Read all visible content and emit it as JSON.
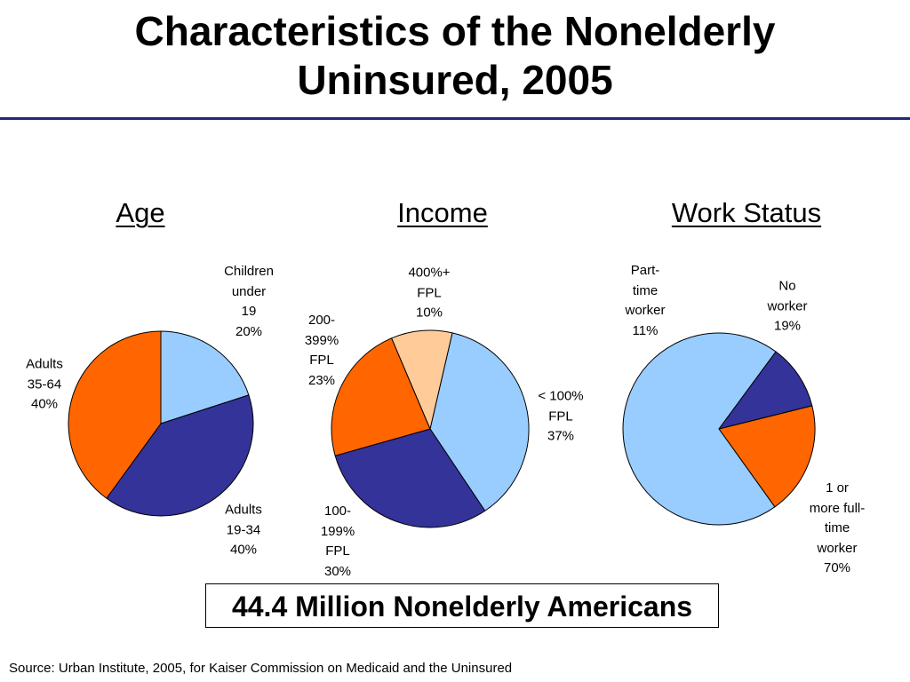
{
  "title_lines": [
    "Characteristics of the Nonelderly",
    "Uninsured, 2005"
  ],
  "total_note": "44.4 Million Nonelderly Americans",
  "source": "Source: Urban Institute, 2005, for Kaiser Commission on Medicaid and the Uninsured",
  "chart_data": [
    {
      "type": "pie",
      "title": "Age",
      "slices": [
        {
          "label": [
            "Children",
            "under",
            "19",
            "20%"
          ],
          "value": 20,
          "color": "#99ccff"
        },
        {
          "label": [
            "Adults",
            "19-34",
            "40%"
          ],
          "value": 40,
          "color": "#333399"
        },
        {
          "label": [
            "Adults",
            "35-64",
            "40%"
          ],
          "value": 40,
          "color": "#ff6600"
        }
      ]
    },
    {
      "type": "pie",
      "title": "Income",
      "slices": [
        {
          "label": [
            "< 100%",
            "FPL",
            "37%"
          ],
          "value": 37,
          "color": "#99ccff"
        },
        {
          "label": [
            "100-",
            "199%",
            "FPL",
            "30%"
          ],
          "value": 30,
          "color": "#333399"
        },
        {
          "label": [
            "200-",
            "399%",
            "FPL",
            "23%"
          ],
          "value": 23,
          "color": "#ff6600"
        },
        {
          "label": [
            "400%+",
            "FPL",
            "10%"
          ],
          "value": 10,
          "color": "#ffcc99"
        }
      ]
    },
    {
      "type": "pie",
      "title": "Work Status",
      "slices": [
        {
          "label": [
            "No",
            "worker",
            "19%"
          ],
          "value": 19,
          "color": "#ff6600"
        },
        {
          "label": [
            "1 or",
            "more full-",
            "time",
            "worker",
            "70%"
          ],
          "value": 70,
          "color": "#99ccff"
        },
        {
          "label": [
            "Part-",
            "time",
            "worker",
            "11%"
          ],
          "value": 11,
          "color": "#333399"
        }
      ]
    }
  ]
}
